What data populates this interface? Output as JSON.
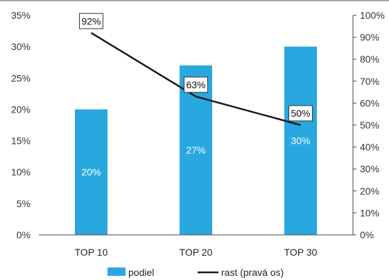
{
  "chart_data": {
    "type": "bar",
    "categories": [
      "TOP 10",
      "TOP 20",
      "TOP 30"
    ],
    "series": [
      {
        "name": "podiel",
        "type": "bar",
        "axis": "left",
        "values": [
          20,
          27,
          30
        ],
        "labels": [
          "20%",
          "27%",
          "30%"
        ],
        "color": "#29A8E0"
      },
      {
        "name": "rast (pravá os)",
        "type": "line",
        "axis": "right",
        "values": [
          92,
          63,
          50
        ],
        "labels": [
          "92%",
          "63%",
          "50%"
        ],
        "color": "#1a1a1a"
      }
    ],
    "y_left": {
      "min": 0,
      "max": 35,
      "step": 5,
      "ticks": [
        "0%",
        "5%",
        "10%",
        "15%",
        "20%",
        "25%",
        "30%",
        "35%"
      ]
    },
    "y_right": {
      "min": 0,
      "max": 100,
      "step": 10,
      "ticks": [
        "0%",
        "10%",
        "20%",
        "30%",
        "40%",
        "50%",
        "60%",
        "70%",
        "80%",
        "90%",
        "100%"
      ]
    },
    "grid": false,
    "legend": {
      "position": "bottom",
      "items": [
        "podiel",
        "rast (pravá os)"
      ]
    }
  }
}
